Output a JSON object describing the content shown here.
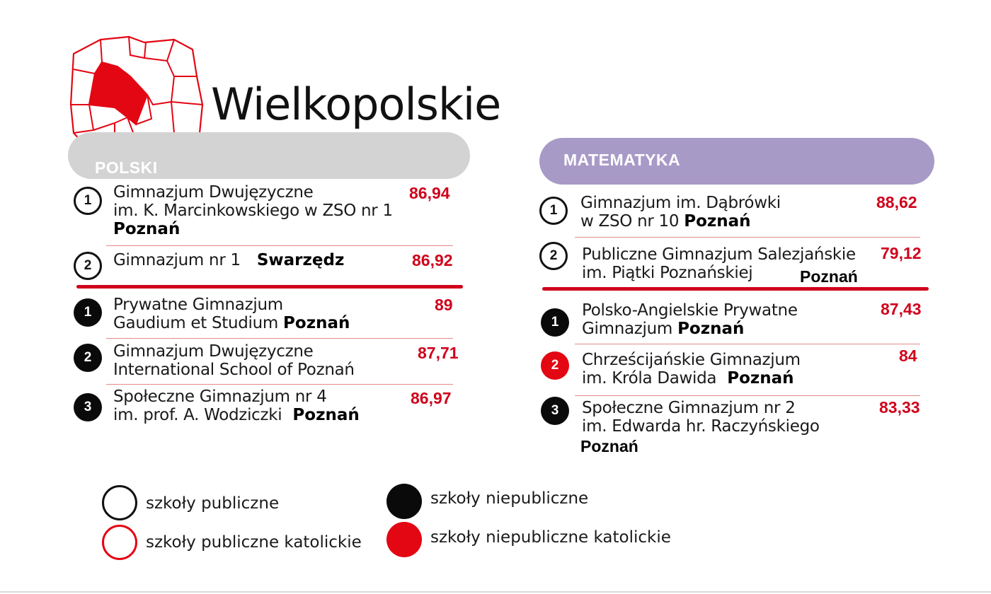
{
  "region_title": "Wielkopolskie",
  "icons": {
    "map": "poland-map-icon"
  },
  "colors": {
    "accent_red": "#d0021b",
    "polski_bar": "#d3d3d3",
    "matematyka_bar": "#a89ac7"
  },
  "polski": {
    "header": "POLSKI",
    "entries": [
      {
        "rank": "1",
        "name_line1": "Gimnazjum Dwujęzyczne",
        "name_line2": "im. K. Marcinkowskiego w ZSO nr 1",
        "city": "Poznań",
        "score": "86,94"
      },
      {
        "rank": "2",
        "name_line1": "Gimnazjum nr 1",
        "city": "Swarzędz",
        "score": "86,92"
      },
      {
        "rank": "1",
        "name_line1": "Prywatne Gimnazjum",
        "name_line2": "Gaudium et Studium",
        "city": "Poznań",
        "score": "89"
      },
      {
        "rank": "2",
        "name_line1": "Gimnazjum Dwujęzyczne",
        "name_line2": "International School of Poznań",
        "score": "87,71"
      },
      {
        "rank": "3",
        "name_line1": "Społeczne Gimnazjum nr 4",
        "name_line2": "im. prof. A. Wodziczki",
        "city": "Poznań",
        "score": "86,97"
      }
    ]
  },
  "matematyka": {
    "header": "MATEMATYKA",
    "entries": [
      {
        "rank": "1",
        "name_line1": "Gimnazjum im. Dąbrówki",
        "name_line2": "w ZSO nr 10",
        "city": "Poznań",
        "score": "88,62"
      },
      {
        "rank": "2",
        "name_line1": "Publiczne Gimnazjum Salezjańskie",
        "name_line2": "im. Piątki Poznańskiej",
        "city": "Poznań",
        "score": "79,12"
      },
      {
        "rank": "1",
        "name_line1": "Polsko-Angielskie Prywatne",
        "name_line2": "Gimnazjum",
        "city": "Poznań",
        "score": "87,43"
      },
      {
        "rank": "2",
        "name_line1": "Chrześcijańskie Gimnazjum",
        "name_line2": "im. Króla Dawida",
        "city": "Poznań",
        "score": "84"
      },
      {
        "rank": "3",
        "name_line1": "Społeczne Gimnazjum nr 2",
        "name_line2": "im. Edwarda hr. Raczyńskiego",
        "city": "Poznań",
        "score": "83,33"
      }
    ]
  },
  "legend": {
    "public": "szkoły publiczne",
    "public_catholic": "szkoły publiczne katolickie",
    "nonpublic": "szkoły niepubliczne",
    "nonpublic_catholic": "szkoły niepubliczne katolickie"
  }
}
